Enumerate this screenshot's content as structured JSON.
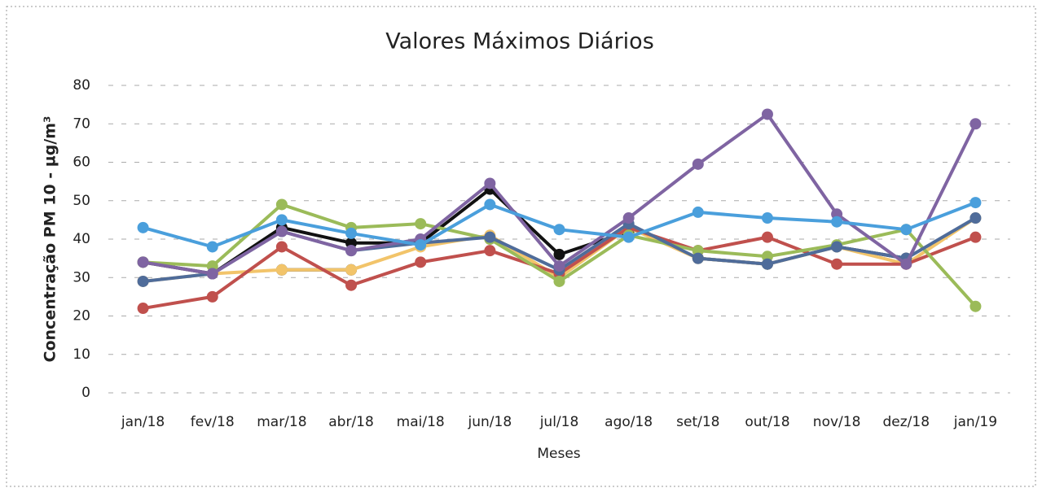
{
  "chart_data": {
    "type": "line",
    "title": "Valores Máximos Diários",
    "x_label": "Meses",
    "y_label": "Concentração PM 10 - µg/m³",
    "categories": [
      "jan/18",
      "fev/18",
      "mar/18",
      "abr/18",
      "mai/18",
      "jun/18",
      "jul/18",
      "ago/18",
      "set/18",
      "out/18",
      "nov/18",
      "dez/18",
      "jan/19"
    ],
    "ylim": [
      0,
      80
    ],
    "yticks": [
      0,
      10,
      20,
      30,
      40,
      50,
      60,
      70,
      80
    ],
    "grid": true,
    "series": [
      {
        "color": "#111111",
        "values": [
          34,
          31,
          43,
          39,
          39,
          53,
          36,
          42,
          null,
          null,
          null,
          null,
          null
        ]
      },
      {
        "color": "#111111",
        "values": [
          null,
          null,
          32,
          32,
          null,
          null,
          null,
          null,
          35,
          33.5,
          38,
          35,
          null
        ]
      },
      {
        "color": "#f2c46a",
        "values": [
          29,
          31,
          32,
          32,
          38,
          41,
          30,
          43,
          35,
          33.5,
          38,
          33.5,
          45.5
        ]
      },
      {
        "color": "#c0504d",
        "values": [
          22,
          25,
          38,
          28,
          34,
          37,
          31,
          43,
          37,
          40.5,
          33.5,
          33.5,
          40.5
        ]
      },
      {
        "color": "#9bbb59",
        "values": [
          34,
          33,
          49,
          43,
          44,
          40,
          29,
          41,
          37,
          35.5,
          38.5,
          42.5,
          22.5
        ]
      },
      {
        "color": "#4f6c9a",
        "values": [
          29,
          31,
          42,
          37,
          39,
          40.5,
          32,
          44,
          35,
          33.5,
          38,
          35,
          45.5
        ]
      },
      {
        "color": "#7f64a2",
        "values": [
          34,
          31,
          42,
          37,
          40,
          54.5,
          33,
          45.5,
          59.5,
          72.5,
          46.5,
          33.5,
          70
        ]
      },
      {
        "color": "#4a9fdc",
        "values": [
          43,
          38,
          45,
          41.5,
          38.5,
          49,
          42.5,
          40.5,
          47,
          45.5,
          44.5,
          42.5,
          49.5
        ]
      }
    ]
  }
}
